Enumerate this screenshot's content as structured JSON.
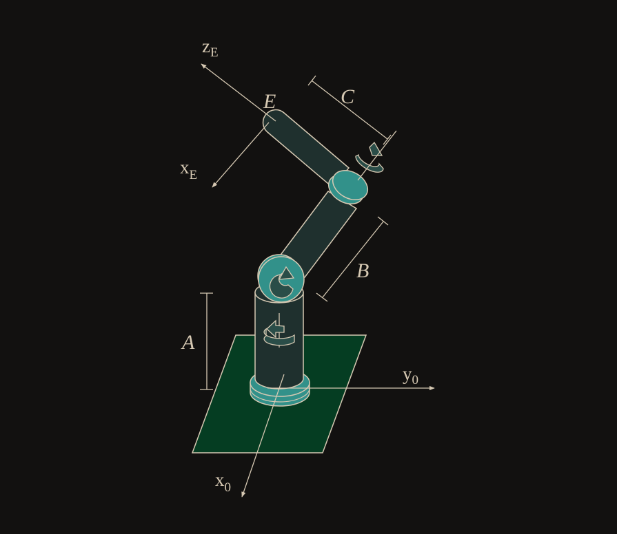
{
  "diagram": {
    "colors": {
      "background": "#121110",
      "line": "#d6c9b3",
      "base_plate": "#053d22",
      "joint_teal": "#32918a",
      "link_dark": "#1f302e"
    },
    "axes": {
      "y0": {
        "main": "y",
        "sub": "0"
      },
      "x0": {
        "main": "x",
        "sub": "0"
      },
      "zE": {
        "main": "z",
        "sub": "E"
      },
      "xE": {
        "main": "x",
        "sub": "E"
      }
    },
    "labels": {
      "link_a": "A",
      "link_b": "B",
      "link_c": "C",
      "end_effector": "E"
    },
    "icons": [
      "rotation-arrow-icon",
      "rotation-arrow-icon",
      "rotation-arrow-icon"
    ]
  }
}
